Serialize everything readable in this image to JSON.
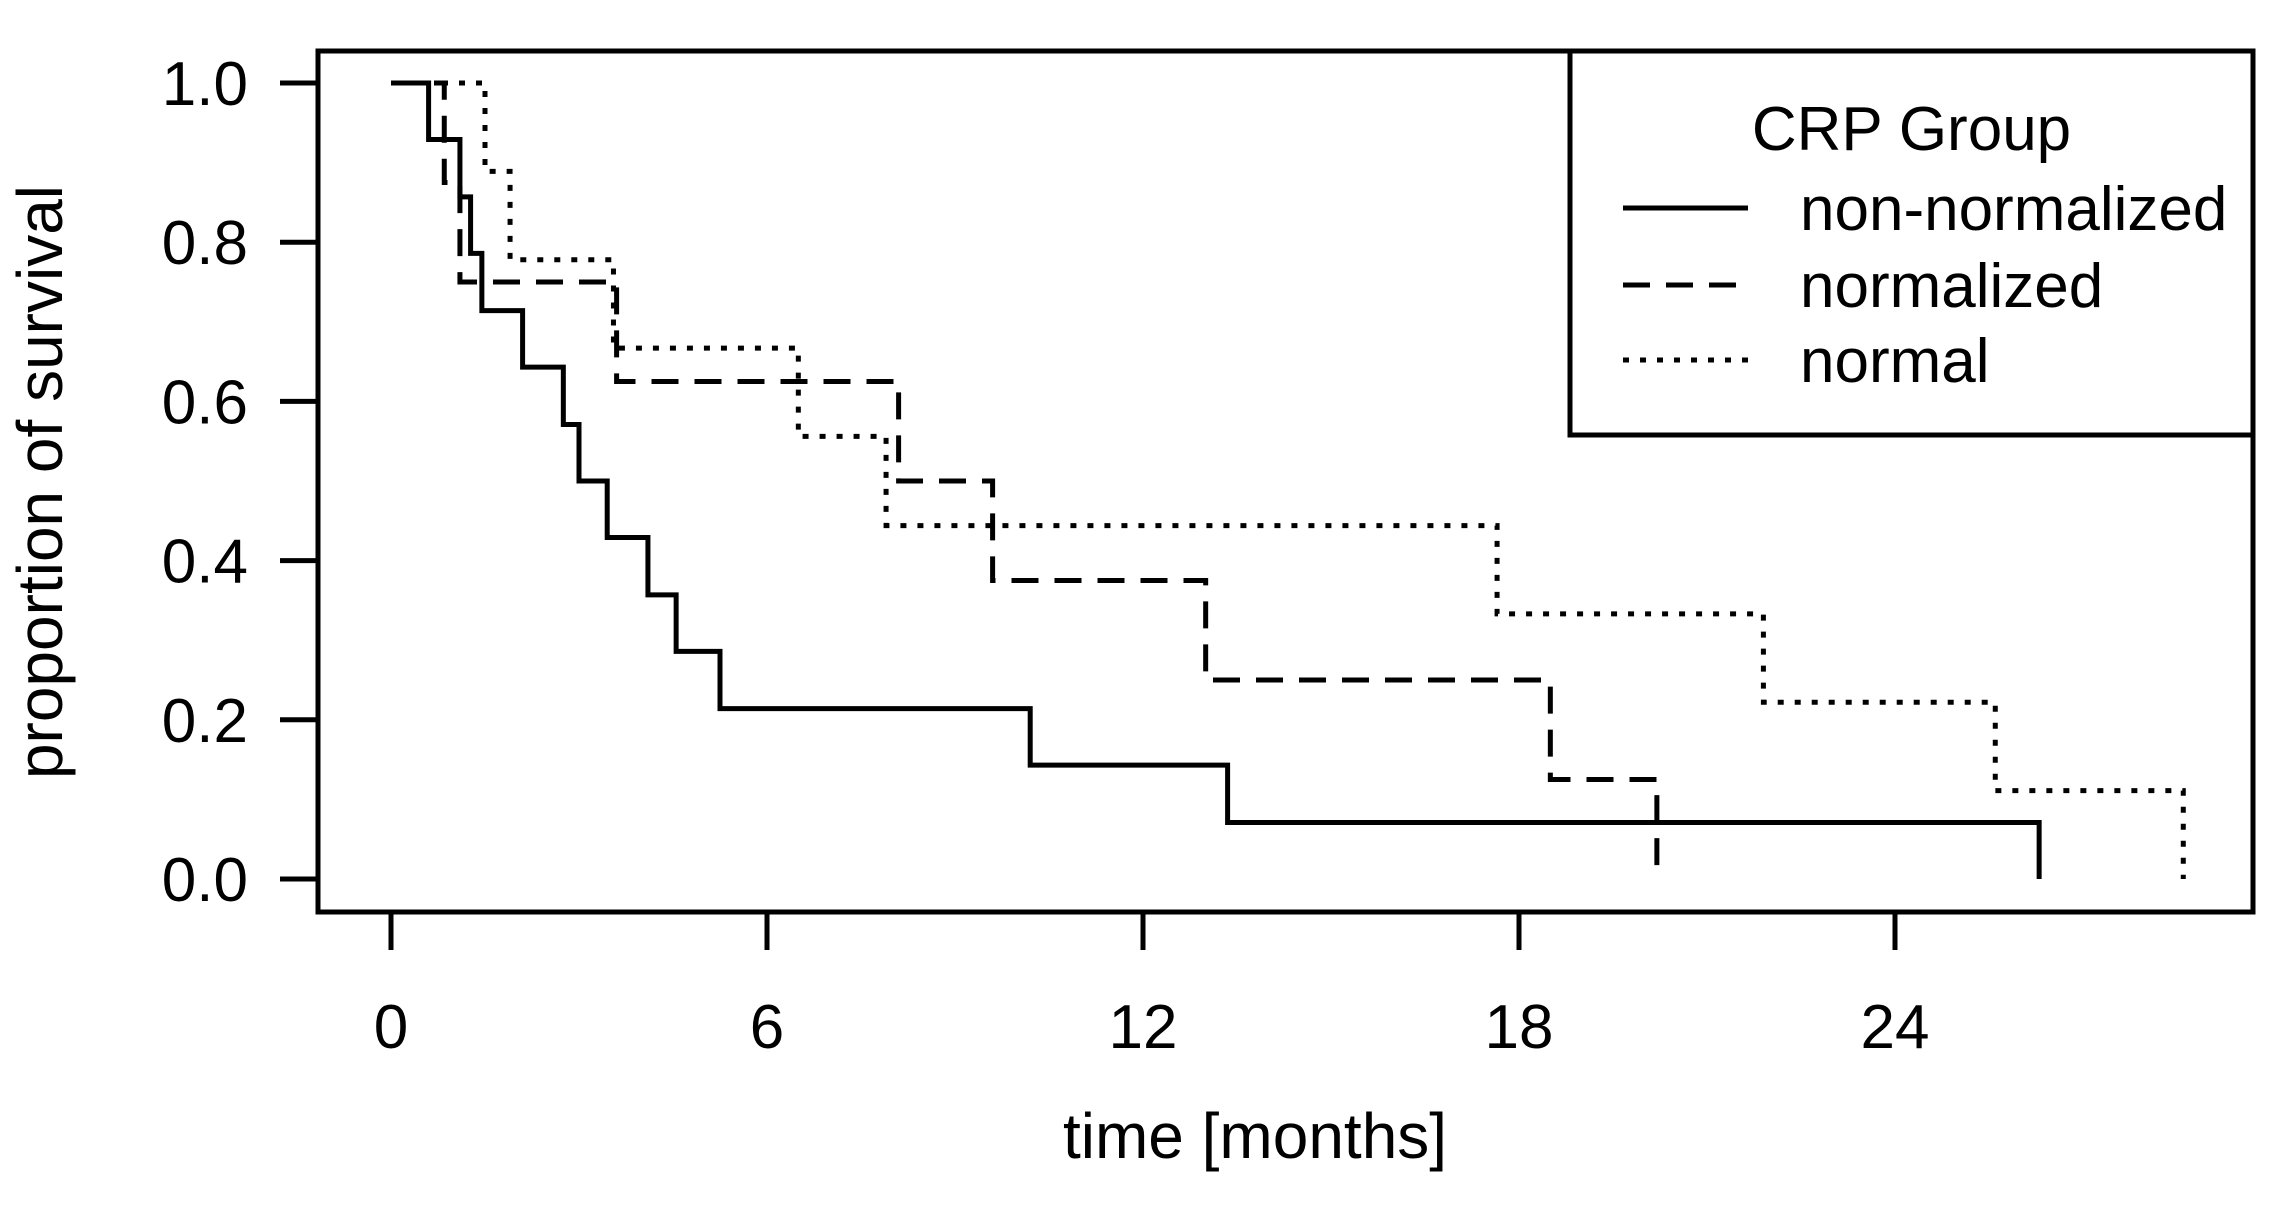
{
  "figure": {
    "background": "#ffffff",
    "ink_color": "#000000"
  },
  "chart_data": {
    "type": "line",
    "subtype": "kaplan-meier-step",
    "title": "",
    "xlabel": "time [months]",
    "ylabel": "proportion of survival",
    "xlim": [
      -1.17,
      29.71
    ],
    "ylim": [
      -0.042,
      1.042
    ],
    "xticks": [
      0,
      6,
      12,
      18,
      24
    ],
    "xtick_labels": [
      "0",
      "6",
      "12",
      "18",
      "24"
    ],
    "yticks": [
      0.0,
      0.2,
      0.4,
      0.6,
      0.8,
      1.0
    ],
    "ytick_labels": [
      "0.0",
      "0.2",
      "0.4",
      "0.6",
      "0.8",
      "1.0"
    ],
    "grid": false,
    "legend": {
      "title": "CRP Group",
      "position": "top-right",
      "entries": [
        {
          "label": "non-normalized",
          "linestyle": "solid"
        },
        {
          "label": "normalized",
          "linestyle": "dashed"
        },
        {
          "label": "normal",
          "linestyle": "dotted"
        }
      ]
    },
    "series": [
      {
        "name": "non-normalized",
        "linestyle": "solid",
        "start": [
          0,
          1.0
        ],
        "steps": [
          [
            0.6,
            0.929
          ],
          [
            1.1,
            0.857
          ],
          [
            1.27,
            0.786
          ],
          [
            1.45,
            0.714
          ],
          [
            2.1,
            0.643
          ],
          [
            2.75,
            0.571
          ],
          [
            3.0,
            0.5
          ],
          [
            3.45,
            0.429
          ],
          [
            4.1,
            0.357
          ],
          [
            4.55,
            0.286
          ],
          [
            5.25,
            0.214
          ],
          [
            10.2,
            0.143
          ],
          [
            13.35,
            0.071
          ],
          [
            26.3,
            0.0
          ]
        ]
      },
      {
        "name": "normalized",
        "linestyle": "dashed",
        "start": [
          0,
          1.0
        ],
        "steps": [
          [
            0.85,
            0.875
          ],
          [
            1.1,
            0.75
          ],
          [
            3.6,
            0.625
          ],
          [
            8.1,
            0.5
          ],
          [
            9.6,
            0.375
          ],
          [
            13.0,
            0.25
          ],
          [
            18.5,
            0.125
          ],
          [
            20.2,
            0.0
          ]
        ]
      },
      {
        "name": "normal",
        "linestyle": "dotted",
        "start": [
          0,
          1.0
        ],
        "steps": [
          [
            1.5,
            0.889
          ],
          [
            1.9,
            0.778
          ],
          [
            3.55,
            0.667
          ],
          [
            6.5,
            0.556
          ],
          [
            7.9,
            0.444
          ],
          [
            17.65,
            0.333
          ],
          [
            21.9,
            0.222
          ],
          [
            25.6,
            0.111
          ],
          [
            28.6,
            0.0
          ]
        ]
      }
    ]
  }
}
